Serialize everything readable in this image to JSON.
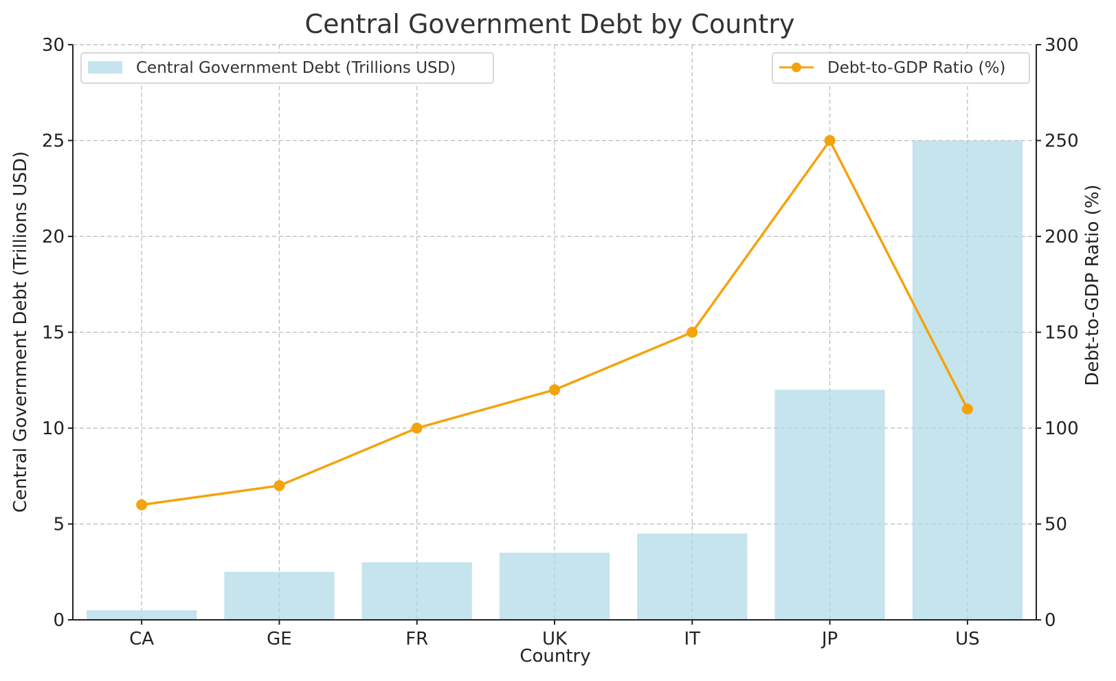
{
  "chart_data": {
    "type": "bar",
    "title": "Central Government Debt by Country",
    "xlabel": "Country",
    "ylabel": "Central Government Debt (Trillions USD)",
    "ylabel_right": "Debt-to-GDP Ratio (%)",
    "categories": [
      "CA",
      "GE",
      "FR",
      "UK",
      "IT",
      "JP",
      "US"
    ],
    "series": [
      {
        "name": "Central Government Debt (Trillions USD)",
        "type": "bar",
        "axis": "left",
        "color": "#add8e6",
        "values": [
          0.5,
          2.5,
          3.0,
          3.5,
          4.5,
          12.0,
          25.0
        ]
      },
      {
        "name": "Debt-to-GDP Ratio (%)",
        "type": "line",
        "axis": "right",
        "color": "#f4a30b",
        "marker": "circle",
        "values": [
          60,
          70,
          100,
          120,
          150,
          250,
          110
        ]
      }
    ],
    "ylim": [
      0,
      30
    ],
    "ylim_right": [
      0,
      300
    ],
    "yticks": [
      0,
      5,
      10,
      15,
      20,
      25,
      30
    ],
    "yticks_right": [
      0,
      50,
      100,
      150,
      200,
      250,
      300
    ],
    "grid": true,
    "legend_bar_position": "top-left",
    "legend_line_position": "top-right"
  }
}
